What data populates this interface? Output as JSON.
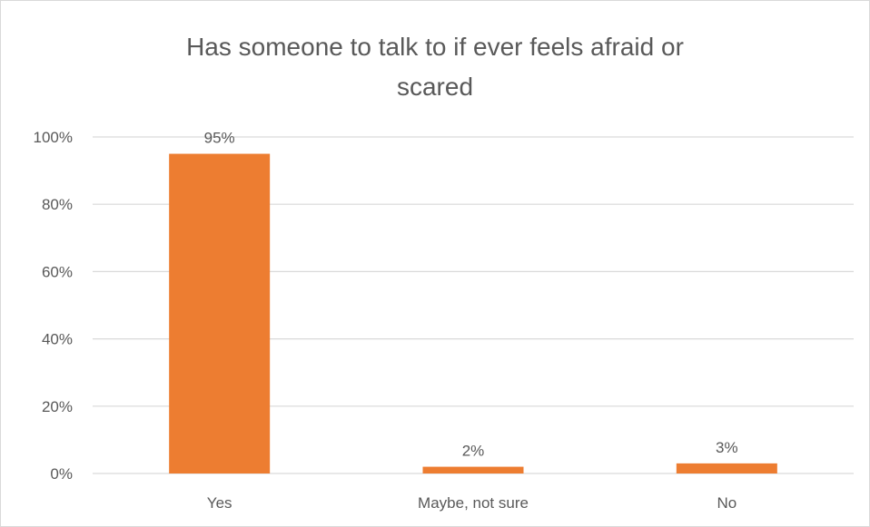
{
  "chart_data": {
    "type": "bar",
    "title_lines": [
      "Has someone  to talk to if ever feels afraid or",
      "scared"
    ],
    "categories": [
      "Yes",
      "Maybe, not sure",
      "No"
    ],
    "values": [
      95,
      2,
      3
    ],
    "data_labels": [
      "95%",
      "2%",
      "3%"
    ],
    "y_ticks": [
      0,
      20,
      40,
      60,
      80,
      100
    ],
    "y_tick_labels": [
      "0%",
      "20%",
      "40%",
      "60%",
      "80%",
      "100%"
    ],
    "ylim": [
      0,
      100
    ],
    "grid": true,
    "legend": "none",
    "bar_color": "#ED7D31",
    "grid_color": "#d9d9d9"
  }
}
